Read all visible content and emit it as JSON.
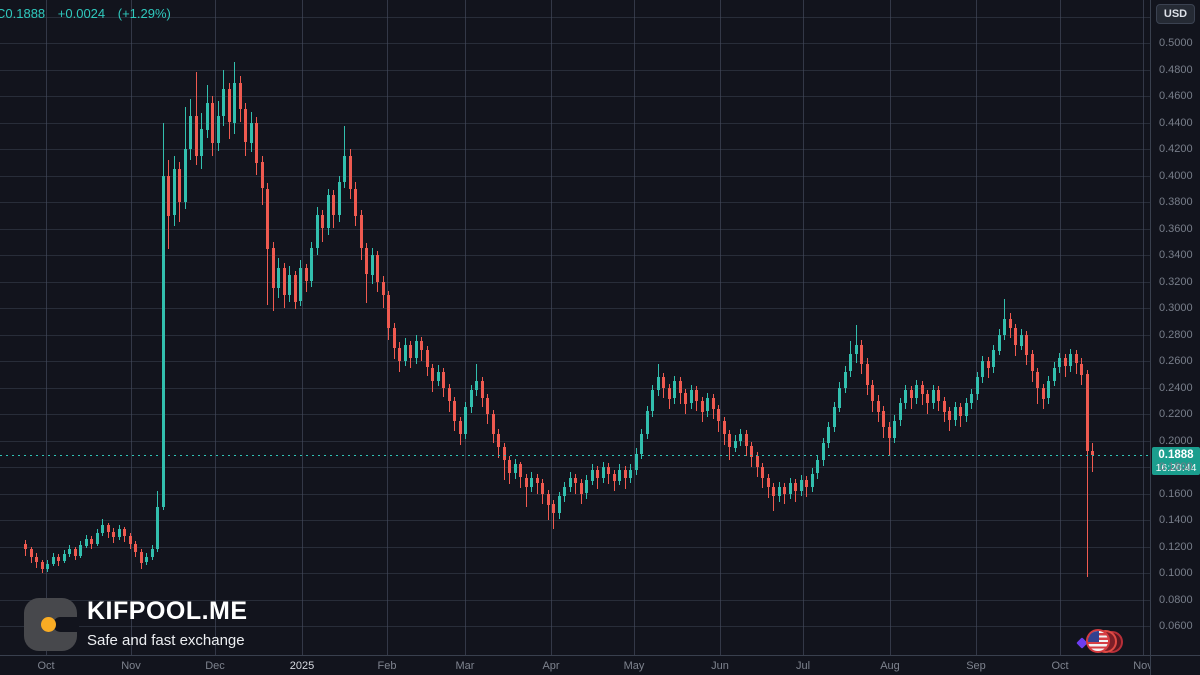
{
  "ticker": {
    "last": "C0.1888",
    "change": "+0.0024",
    "change_pct": "(+1.29%)"
  },
  "currency_button": {
    "label": "USD"
  },
  "price_badge": {
    "price": "0.1888",
    "time": "16:20:44"
  },
  "watermark": {
    "title": "KIFPOOL.ME",
    "subtitle": "Safe and fast exchange"
  },
  "colors": {
    "background": "#12141d",
    "grid": "#3a4150",
    "up_candle": "#32bfae",
    "down_candle": "#ef5a50",
    "accent_teal": "#2fc8bd",
    "badge_bg": "#1b9e8e",
    "logo_dot_orange": "#f9ac24"
  },
  "chart_data": {
    "type": "candlestick",
    "quote_currency": "USD",
    "current": {
      "price": 0.1888,
      "time": "16:20:44",
      "change": 0.0024,
      "change_pct": 1.29
    },
    "price_axis": {
      "ticks": [
        "0.5000",
        "0.4800",
        "0.4600",
        "0.4400",
        "0.4200",
        "0.4000",
        "0.3800",
        "0.3600",
        "0.3400",
        "0.3200",
        "0.3000",
        "0.2800",
        "0.2600",
        "0.2400",
        "0.2200",
        "0.2000",
        "0.1800",
        "0.1600",
        "0.1400",
        "0.1200",
        "0.1000",
        "0.0800",
        "0.0600"
      ],
      "range_top": 0.52,
      "range_bottom": 0.04,
      "grid_step": 0.02
    },
    "time_axis": {
      "labels": [
        "Oct",
        "Nov",
        "Dec",
        "2025",
        "Feb",
        "Mar",
        "Apr",
        "May",
        "Jun",
        "Jul",
        "Aug",
        "Sep",
        "Oct",
        "Nov"
      ],
      "year_label": "2025"
    },
    "legend_position": "none",
    "grid": true,
    "candles_ohlc": [
      [
        0.122,
        0.125,
        0.113,
        0.118
      ],
      [
        0.118,
        0.12,
        0.108,
        0.112
      ],
      [
        0.112,
        0.115,
        0.104,
        0.108
      ],
      [
        0.108,
        0.11,
        0.1,
        0.103
      ],
      [
        0.103,
        0.11,
        0.101,
        0.107
      ],
      [
        0.107,
        0.115,
        0.105,
        0.112
      ],
      [
        0.112,
        0.114,
        0.105,
        0.109
      ],
      [
        0.109,
        0.117,
        0.107,
        0.114
      ],
      [
        0.114,
        0.121,
        0.112,
        0.118
      ],
      [
        0.118,
        0.12,
        0.11,
        0.113
      ],
      [
        0.113,
        0.124,
        0.111,
        0.121
      ],
      [
        0.121,
        0.129,
        0.119,
        0.126
      ],
      [
        0.126,
        0.128,
        0.118,
        0.122
      ],
      [
        0.122,
        0.133,
        0.12,
        0.13
      ],
      [
        0.13,
        0.141,
        0.128,
        0.136
      ],
      [
        0.136,
        0.138,
        0.127,
        0.131
      ],
      [
        0.131,
        0.134,
        0.123,
        0.127
      ],
      [
        0.127,
        0.136,
        0.125,
        0.133
      ],
      [
        0.133,
        0.135,
        0.124,
        0.128
      ],
      [
        0.128,
        0.13,
        0.118,
        0.122
      ],
      [
        0.122,
        0.124,
        0.112,
        0.116
      ],
      [
        0.116,
        0.118,
        0.103,
        0.108
      ],
      [
        0.108,
        0.115,
        0.106,
        0.112
      ],
      [
        0.112,
        0.121,
        0.11,
        0.118
      ],
      [
        0.118,
        0.162,
        0.116,
        0.15
      ],
      [
        0.15,
        0.44,
        0.148,
        0.4
      ],
      [
        0.4,
        0.412,
        0.345,
        0.37
      ],
      [
        0.37,
        0.415,
        0.362,
        0.405
      ],
      [
        0.405,
        0.41,
        0.365,
        0.38
      ],
      [
        0.38,
        0.452,
        0.375,
        0.42
      ],
      [
        0.42,
        0.458,
        0.412,
        0.445
      ],
      [
        0.445,
        0.478,
        0.408,
        0.415
      ],
      [
        0.415,
        0.447,
        0.405,
        0.435
      ],
      [
        0.435,
        0.468,
        0.428,
        0.455
      ],
      [
        0.455,
        0.46,
        0.415,
        0.425
      ],
      [
        0.425,
        0.456,
        0.418,
        0.445
      ],
      [
        0.445,
        0.48,
        0.438,
        0.465
      ],
      [
        0.465,
        0.47,
        0.428,
        0.44
      ],
      [
        0.44,
        0.486,
        0.432,
        0.47
      ],
      [
        0.47,
        0.475,
        0.44,
        0.45
      ],
      [
        0.45,
        0.455,
        0.415,
        0.425
      ],
      [
        0.425,
        0.448,
        0.418,
        0.44
      ],
      [
        0.44,
        0.444,
        0.4,
        0.41
      ],
      [
        0.41,
        0.415,
        0.378,
        0.39
      ],
      [
        0.39,
        0.394,
        0.302,
        0.345
      ],
      [
        0.345,
        0.35,
        0.298,
        0.315
      ],
      [
        0.315,
        0.338,
        0.308,
        0.33
      ],
      [
        0.33,
        0.334,
        0.3,
        0.31
      ],
      [
        0.31,
        0.332,
        0.305,
        0.325
      ],
      [
        0.325,
        0.328,
        0.299,
        0.305
      ],
      [
        0.305,
        0.336,
        0.301,
        0.33
      ],
      [
        0.33,
        0.333,
        0.312,
        0.32
      ],
      [
        0.32,
        0.35,
        0.316,
        0.345
      ],
      [
        0.345,
        0.376,
        0.34,
        0.37
      ],
      [
        0.37,
        0.374,
        0.35,
        0.36
      ],
      [
        0.36,
        0.39,
        0.355,
        0.385
      ],
      [
        0.385,
        0.389,
        0.36,
        0.37
      ],
      [
        0.37,
        0.4,
        0.365,
        0.395
      ],
      [
        0.395,
        0.437,
        0.39,
        0.415
      ],
      [
        0.415,
        0.42,
        0.382,
        0.39
      ],
      [
        0.39,
        0.395,
        0.362,
        0.37
      ],
      [
        0.37,
        0.374,
        0.336,
        0.345
      ],
      [
        0.345,
        0.349,
        0.304,
        0.325
      ],
      [
        0.325,
        0.345,
        0.318,
        0.34
      ],
      [
        0.34,
        0.343,
        0.312,
        0.32
      ],
      [
        0.32,
        0.324,
        0.3,
        0.31
      ],
      [
        0.31,
        0.313,
        0.276,
        0.285
      ],
      [
        0.285,
        0.289,
        0.262,
        0.27
      ],
      [
        0.27,
        0.274,
        0.251,
        0.26
      ],
      [
        0.26,
        0.277,
        0.256,
        0.272
      ],
      [
        0.272,
        0.275,
        0.255,
        0.262
      ],
      [
        0.262,
        0.28,
        0.258,
        0.275
      ],
      [
        0.275,
        0.278,
        0.26,
        0.268
      ],
      [
        0.268,
        0.271,
        0.248,
        0.255
      ],
      [
        0.255,
        0.258,
        0.237,
        0.245
      ],
      [
        0.245,
        0.257,
        0.241,
        0.252
      ],
      [
        0.252,
        0.255,
        0.233,
        0.24
      ],
      [
        0.24,
        0.243,
        0.222,
        0.23
      ],
      [
        0.23,
        0.233,
        0.207,
        0.215
      ],
      [
        0.215,
        0.218,
        0.197,
        0.205
      ],
      [
        0.205,
        0.229,
        0.201,
        0.225
      ],
      [
        0.225,
        0.242,
        0.221,
        0.238
      ],
      [
        0.238,
        0.258,
        0.234,
        0.245
      ],
      [
        0.245,
        0.248,
        0.225,
        0.232
      ],
      [
        0.232,
        0.235,
        0.212,
        0.22
      ],
      [
        0.22,
        0.223,
        0.198,
        0.205
      ],
      [
        0.205,
        0.209,
        0.187,
        0.195
      ],
      [
        0.195,
        0.198,
        0.17,
        0.185
      ],
      [
        0.185,
        0.188,
        0.167,
        0.175
      ],
      [
        0.175,
        0.186,
        0.171,
        0.182
      ],
      [
        0.182,
        0.184,
        0.164,
        0.172
      ],
      [
        0.172,
        0.175,
        0.15,
        0.165
      ],
      [
        0.165,
        0.176,
        0.161,
        0.172
      ],
      [
        0.172,
        0.175,
        0.16,
        0.168
      ],
      [
        0.168,
        0.171,
        0.152,
        0.16
      ],
      [
        0.16,
        0.163,
        0.14,
        0.152
      ],
      [
        0.152,
        0.155,
        0.133,
        0.145
      ],
      [
        0.145,
        0.161,
        0.141,
        0.158
      ],
      [
        0.158,
        0.169,
        0.154,
        0.165
      ],
      [
        0.165,
        0.176,
        0.161,
        0.172
      ],
      [
        0.172,
        0.175,
        0.16,
        0.168
      ],
      [
        0.168,
        0.171,
        0.152,
        0.16
      ],
      [
        0.16,
        0.174,
        0.156,
        0.17
      ],
      [
        0.17,
        0.182,
        0.166,
        0.178
      ],
      [
        0.178,
        0.181,
        0.164,
        0.172
      ],
      [
        0.172,
        0.184,
        0.168,
        0.18
      ],
      [
        0.18,
        0.183,
        0.167,
        0.175
      ],
      [
        0.175,
        0.178,
        0.162,
        0.17
      ],
      [
        0.17,
        0.182,
        0.166,
        0.178
      ],
      [
        0.178,
        0.181,
        0.164,
        0.172
      ],
      [
        0.172,
        0.182,
        0.168,
        0.178
      ],
      [
        0.178,
        0.194,
        0.174,
        0.19
      ],
      [
        0.19,
        0.209,
        0.186,
        0.205
      ],
      [
        0.205,
        0.226,
        0.201,
        0.222
      ],
      [
        0.222,
        0.242,
        0.218,
        0.238
      ],
      [
        0.238,
        0.258,
        0.234,
        0.248
      ],
      [
        0.248,
        0.251,
        0.232,
        0.24
      ],
      [
        0.24,
        0.243,
        0.224,
        0.232
      ],
      [
        0.232,
        0.249,
        0.228,
        0.245
      ],
      [
        0.245,
        0.248,
        0.228,
        0.236
      ],
      [
        0.236,
        0.239,
        0.22,
        0.228
      ],
      [
        0.228,
        0.242,
        0.224,
        0.238
      ],
      [
        0.238,
        0.241,
        0.222,
        0.23
      ],
      [
        0.23,
        0.233,
        0.214,
        0.222
      ],
      [
        0.222,
        0.236,
        0.218,
        0.232
      ],
      [
        0.232,
        0.235,
        0.216,
        0.224
      ],
      [
        0.224,
        0.227,
        0.207,
        0.215
      ],
      [
        0.215,
        0.218,
        0.197,
        0.205
      ],
      [
        0.205,
        0.208,
        0.185,
        0.195
      ],
      [
        0.195,
        0.204,
        0.191,
        0.2
      ],
      [
        0.2,
        0.209,
        0.196,
        0.205
      ],
      [
        0.205,
        0.208,
        0.188,
        0.196
      ],
      [
        0.196,
        0.199,
        0.18,
        0.188
      ],
      [
        0.188,
        0.191,
        0.172,
        0.18
      ],
      [
        0.18,
        0.183,
        0.164,
        0.172
      ],
      [
        0.172,
        0.175,
        0.157,
        0.165
      ],
      [
        0.165,
        0.168,
        0.147,
        0.158
      ],
      [
        0.158,
        0.169,
        0.154,
        0.165
      ],
      [
        0.165,
        0.168,
        0.152,
        0.16
      ],
      [
        0.16,
        0.172,
        0.156,
        0.168
      ],
      [
        0.168,
        0.171,
        0.154,
        0.162
      ],
      [
        0.162,
        0.174,
        0.158,
        0.17
      ],
      [
        0.17,
        0.173,
        0.157,
        0.165
      ],
      [
        0.165,
        0.179,
        0.161,
        0.175
      ],
      [
        0.175,
        0.189,
        0.171,
        0.185
      ],
      [
        0.185,
        0.202,
        0.181,
        0.198
      ],
      [
        0.198,
        0.214,
        0.194,
        0.21
      ],
      [
        0.21,
        0.229,
        0.206,
        0.225
      ],
      [
        0.225,
        0.244,
        0.221,
        0.24
      ],
      [
        0.24,
        0.256,
        0.236,
        0.252
      ],
      [
        0.252,
        0.275,
        0.248,
        0.265
      ],
      [
        0.265,
        0.287,
        0.258,
        0.272
      ],
      [
        0.272,
        0.276,
        0.25,
        0.258
      ],
      [
        0.258,
        0.262,
        0.234,
        0.242
      ],
      [
        0.242,
        0.246,
        0.222,
        0.23
      ],
      [
        0.23,
        0.234,
        0.214,
        0.222
      ],
      [
        0.222,
        0.226,
        0.202,
        0.21
      ],
      [
        0.21,
        0.214,
        0.188,
        0.202
      ],
      [
        0.202,
        0.219,
        0.198,
        0.215
      ],
      [
        0.215,
        0.232,
        0.211,
        0.228
      ],
      [
        0.228,
        0.242,
        0.224,
        0.238
      ],
      [
        0.238,
        0.241,
        0.224,
        0.232
      ],
      [
        0.232,
        0.246,
        0.228,
        0.242
      ],
      [
        0.242,
        0.245,
        0.227,
        0.235
      ],
      [
        0.235,
        0.238,
        0.22,
        0.228
      ],
      [
        0.228,
        0.242,
        0.224,
        0.238
      ],
      [
        0.238,
        0.241,
        0.222,
        0.23
      ],
      [
        0.23,
        0.233,
        0.214,
        0.222
      ],
      [
        0.222,
        0.225,
        0.207,
        0.215
      ],
      [
        0.215,
        0.229,
        0.211,
        0.225
      ],
      [
        0.225,
        0.228,
        0.21,
        0.218
      ],
      [
        0.218,
        0.232,
        0.214,
        0.228
      ],
      [
        0.228,
        0.239,
        0.224,
        0.235
      ],
      [
        0.235,
        0.252,
        0.231,
        0.248
      ],
      [
        0.248,
        0.264,
        0.244,
        0.26
      ],
      [
        0.26,
        0.263,
        0.247,
        0.255
      ],
      [
        0.255,
        0.272,
        0.251,
        0.268
      ],
      [
        0.268,
        0.284,
        0.264,
        0.28
      ],
      [
        0.28,
        0.307,
        0.276,
        0.292
      ],
      [
        0.292,
        0.296,
        0.277,
        0.285
      ],
      [
        0.285,
        0.288,
        0.264,
        0.272
      ],
      [
        0.272,
        0.284,
        0.268,
        0.28
      ],
      [
        0.28,
        0.283,
        0.257,
        0.265
      ],
      [
        0.265,
        0.268,
        0.244,
        0.252
      ],
      [
        0.252,
        0.255,
        0.228,
        0.24
      ],
      [
        0.24,
        0.243,
        0.224,
        0.232
      ],
      [
        0.232,
        0.249,
        0.228,
        0.245
      ],
      [
        0.245,
        0.259,
        0.241,
        0.255
      ],
      [
        0.255,
        0.266,
        0.251,
        0.262
      ],
      [
        0.262,
        0.265,
        0.248,
        0.256
      ],
      [
        0.256,
        0.269,
        0.252,
        0.265
      ],
      [
        0.265,
        0.268,
        0.25,
        0.258
      ],
      [
        0.258,
        0.262,
        0.242,
        0.25
      ],
      [
        0.25,
        0.253,
        0.097,
        0.192
      ],
      [
        0.192,
        0.198,
        0.176,
        0.1888
      ]
    ]
  }
}
